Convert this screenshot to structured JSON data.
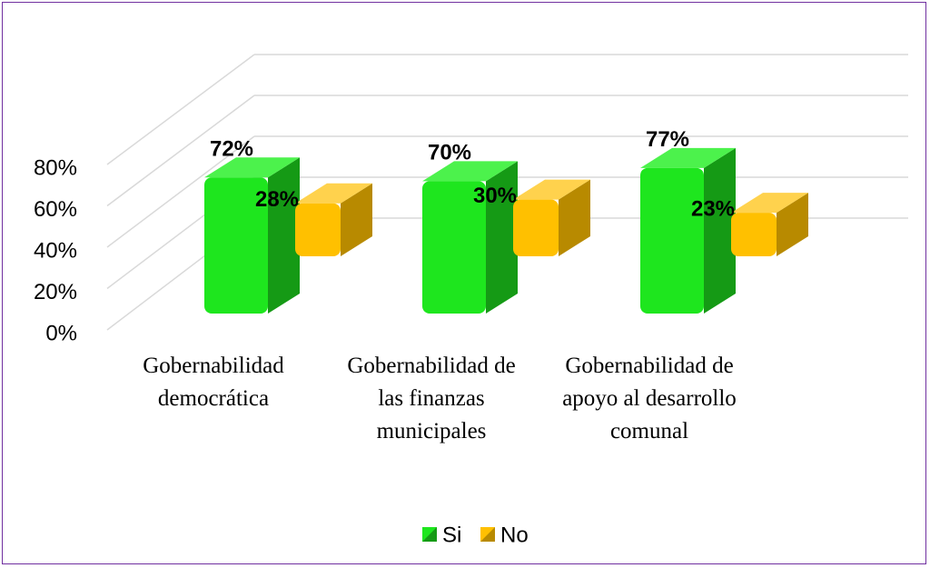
{
  "chart_data": {
    "type": "bar3d",
    "categories": [
      "Gobernabilidad democrática",
      "Gobernabilidad de las finanzas municipales",
      "Gobernabilidad de apoyo al desarrollo comunal"
    ],
    "series": [
      {
        "name": "Si",
        "color": "#1ee61e",
        "values": [
          72,
          70,
          77
        ],
        "value_labels": [
          "72%",
          "70%",
          "77%"
        ]
      },
      {
        "name": "No",
        "color": "#ffc000",
        "values": [
          28,
          30,
          23
        ],
        "value_labels": [
          "28%",
          "30%",
          "23%"
        ]
      }
    ],
    "ylim": [
      0,
      80
    ],
    "yticks": [
      {
        "value": 0,
        "label": "0%"
      },
      {
        "value": 20,
        "label": "20%"
      },
      {
        "value": 40,
        "label": "40%"
      },
      {
        "value": 60,
        "label": "60%"
      },
      {
        "value": 80,
        "label": "80%"
      }
    ],
    "grid": true,
    "legend": "bottom"
  }
}
